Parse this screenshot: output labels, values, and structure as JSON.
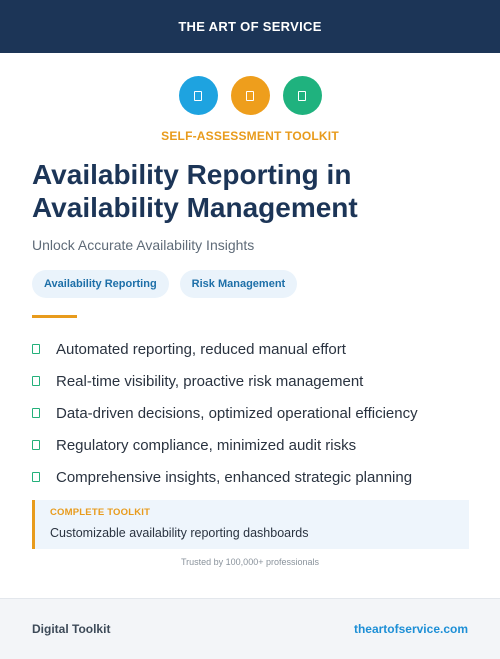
{
  "header": {
    "brand": "THE ART OF SERVICE"
  },
  "icons": [
    {
      "name": "document-icon",
      "color": "#1ea3e0"
    },
    {
      "name": "document-icon",
      "color": "#ee9e1c"
    },
    {
      "name": "document-icon",
      "color": "#1fb27e"
    }
  ],
  "kicker": "SELF-ASSESSMENT TOOLKIT",
  "title": "Availability Reporting in Availability Management",
  "subtitle": "Unlock Accurate Availability Insights",
  "tags": [
    "Availability Reporting",
    "Risk Management"
  ],
  "benefits": [
    "Automated reporting, reduced manual effort",
    "Real-time visibility, proactive risk management",
    "Data-driven decisions, optimized operational efficiency",
    "Regulatory compliance, minimized audit risks",
    "Comprehensive insights, enhanced strategic planning"
  ],
  "callout": {
    "label": "COMPLETE TOOLKIT",
    "text": "Customizable availability reporting dashboards"
  },
  "trusted": "Trusted by 100,000+ professionals",
  "footer": {
    "left": "Digital Toolkit",
    "right": "theartofservice.com"
  },
  "colors": {
    "navy": "#1c3557",
    "accent": "#e89b1c",
    "check": "#23b07a",
    "link": "#1d8fd6"
  }
}
